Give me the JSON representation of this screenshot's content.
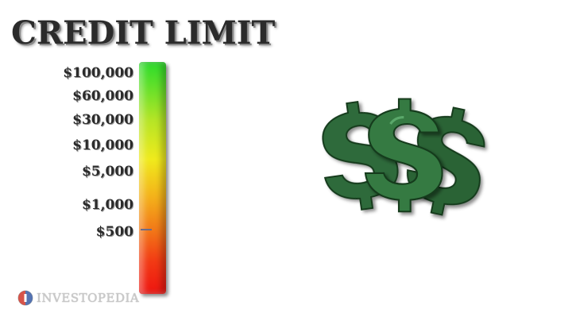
{
  "title": "CREDIT LIMIT",
  "meter": {
    "labels": [
      "$100,000",
      "$60,000",
      "$30,000",
      "$10,000",
      "$5,000",
      "$1,000",
      "$500"
    ],
    "marker_at": "$500",
    "gradient_top_color": "#2bdc2b",
    "gradient_bottom_color": "#ee1410"
  },
  "illustration": {
    "icon": "dollar-signs-icon",
    "color": "#2e6b3a"
  },
  "branding": {
    "logo_icon": "investopedia-logo-icon",
    "logo_text": "INVESTOPEDIA"
  }
}
